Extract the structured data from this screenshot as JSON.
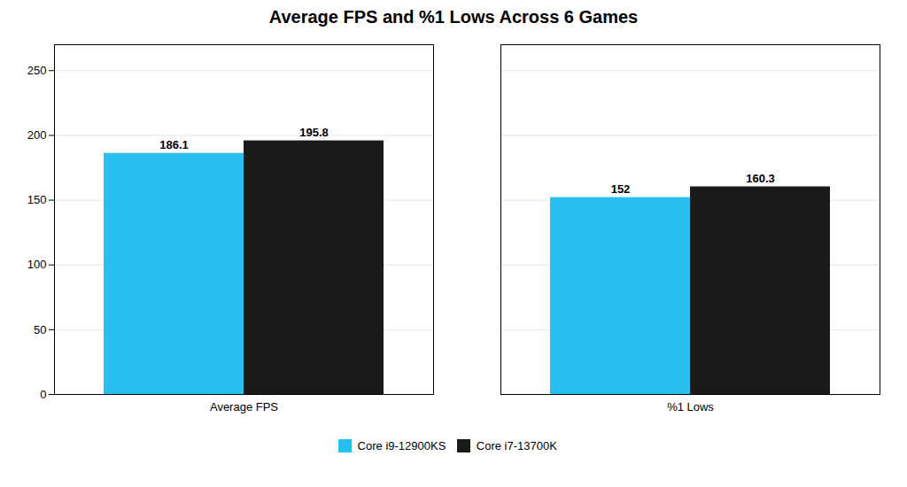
{
  "chart_data": {
    "type": "bar",
    "title": "Average FPS and %1 Lows Across 6 Games",
    "categories": [
      "Average FPS",
      "%1 Lows"
    ],
    "series": [
      {
        "name": "Core i9-12900KS",
        "color": "#29BFEF",
        "values": [
          186.1,
          152
        ]
      },
      {
        "name": "Core i7-13700K",
        "color": "#1A1A1A",
        "values": [
          195.8,
          160.3
        ]
      }
    ],
    "ylim": [
      0,
      270
    ],
    "yticks": [
      0,
      50,
      100,
      150,
      200,
      250
    ],
    "grid": true,
    "legend": "bottom",
    "data_labels": true
  }
}
